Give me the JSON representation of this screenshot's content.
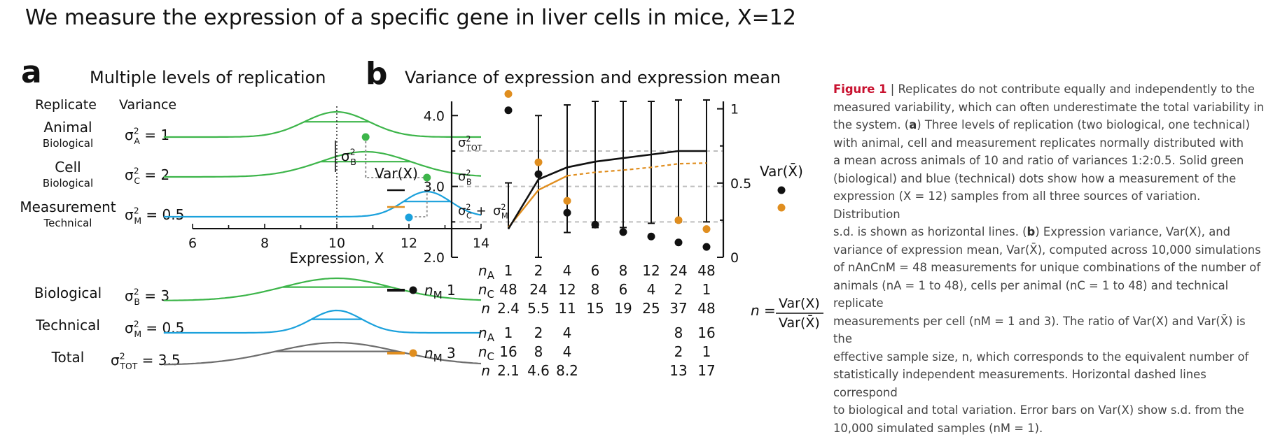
{
  "slide_title": "We measure the expression of a specific gene in liver cells in mice, X=12",
  "panel_a": {
    "letter": "a",
    "title": "Multiple levels of replication",
    "col_replicate": "Replicate",
    "col_variance": "Variance",
    "rows": [
      {
        "name": "Animal",
        "kind": "Biological",
        "sym": "σ",
        "sub": "A",
        "val": " = 1",
        "color": "#3db54a"
      },
      {
        "name": "Cell",
        "kind": "Biological",
        "sym": "σ",
        "sub": "C",
        "val": " = 2",
        "color": "#3db54a"
      },
      {
        "name": "Measurement",
        "kind": "Technical",
        "sym": "σ",
        "sub": "M",
        "val": " = 0.5",
        "color": "#1ba1dc"
      }
    ],
    "bracket_sym": "σ",
    "bracket_sub": "B",
    "xaxis_ticks": [
      "6",
      "8",
      "10",
      "12",
      "14"
    ],
    "xaxis_label": "Expression, X",
    "totals": [
      {
        "name": "Biological",
        "sym": "σ",
        "sub": "B",
        "val": " = 3",
        "color": "#3db54a"
      },
      {
        "name": "Technical",
        "sym": "σ",
        "sub": "M",
        "val": " = 0.5",
        "color": "#1ba1dc"
      },
      {
        "name": "Total",
        "sym": "σ",
        "sub": "TOT",
        "val": " = 3.5",
        "color": "#6d6d6d"
      }
    ]
  },
  "panel_b": {
    "letter": "b",
    "title": "Variance of expression and expression mean",
    "left_axis_label": "Var(X)",
    "right_axis_label": "Var(X̄)",
    "left_ticks": [
      "4.0",
      "3.0",
      "2.0"
    ],
    "right_ticks": [
      "1",
      "0.5",
      "0"
    ],
    "ref_tot_sub": "TOT",
    "ref_b_sub": "B",
    "ref_cm_sub1": "C",
    "ref_cm_sub2": "M",
    "colors": {
      "nm1": "#111111",
      "nm3": "#e08e1f"
    },
    "nm1_label": "n",
    "nm1_sub": "M",
    "nm1_val": " 1",
    "nm3_val": " 3",
    "table_rows_nm1": {
      "nA": [
        "1",
        "2",
        "4",
        "6",
        "8",
        "12",
        "24",
        "48"
      ],
      "nC": [
        "48",
        "24",
        "12",
        "8",
        "6",
        "4",
        "2",
        "1"
      ],
      "n": [
        "2.4",
        "5.5",
        "11",
        "15",
        "19",
        "25",
        "37",
        "48"
      ]
    },
    "table_rows_nm3": {
      "nA": [
        "1",
        "2",
        "4",
        "",
        "",
        "",
        "8",
        "16"
      ],
      "nC": [
        "16",
        "8",
        "4",
        "",
        "",
        "",
        "2",
        "1"
      ],
      "n": [
        "2.1",
        "4.6",
        "8.2",
        "",
        "",
        "",
        "13",
        "17"
      ]
    },
    "formula_lhs": "n =",
    "formula_num": "Var(X)",
    "formula_den": "Var(X̄)"
  },
  "chart_data": {
    "type": "line",
    "x_positions": [
      "1",
      "2",
      "3",
      "4",
      "5",
      "6",
      "7",
      "8"
    ],
    "ylim_left": [
      2.0,
      4.2
    ],
    "ylim_right": [
      0,
      1.05
    ],
    "reference_lines": {
      "sigma_TOT": 3.5,
      "sigma_B": 3.0,
      "sigma_C_plus_M": 2.5
    },
    "series": [
      {
        "name": "Var(X), nM=1",
        "axis": "left",
        "values": [
          2.4,
          3.1,
          3.27,
          3.35,
          3.4,
          3.45,
          3.5,
          3.5
        ],
        "error_lower": [
          3.05,
          2.0,
          2.35,
          2.42,
          2.42,
          2.48,
          2.5,
          2.5
        ],
        "error_upper": [
          3.05,
          4.0,
          4.15,
          4.2,
          4.2,
          4.2,
          4.22,
          4.22
        ]
      },
      {
        "name": "Var(X), nM=3",
        "axis": "left",
        "values": [
          2.42,
          2.95,
          3.15,
          3.2,
          3.23,
          3.27,
          3.32,
          3.33
        ]
      },
      {
        "name": "Var(X̄), nM=1",
        "axis": "right",
        "values": [
          0.99,
          0.56,
          0.3,
          0.22,
          0.17,
          0.14,
          0.1,
          0.07
        ]
      },
      {
        "name": "Var(X̄), nM=3",
        "axis": "right",
        "values": [
          1.1,
          0.64,
          0.38,
          null,
          null,
          null,
          0.25,
          0.19
        ]
      }
    ]
  },
  "caption": {
    "label": "Figure 1",
    "lines": [
      " | Replicates do not contribute equally and independently to the",
      "measured variability, which can often underestimate the total variability in",
      "the system. (",
      "with animal, cell and measurement replicates normally distributed with",
      "a mean across animals of 10 and ratio of variances 1:2:0.5. Solid green",
      "(biological) and blue (technical) dots show how a measurement of the",
      "expression (X = 12) samples from all three sources of variation. Distribution",
      "s.d. is shown as horizontal lines. (",
      "variance of expression mean, Var(X̄), computed across 10,000 simulations",
      "of nAnCnM = 48 measurements for unique combinations of the number of",
      "animals (nA = 1 to 48), cells per animal (nC = 1 to 48) and technical replicate",
      "measurements per cell (nM = 1 and 3). The ratio of Var(X) and Var(X̄) is the",
      "effective sample size, n, which corresponds to the equivalent number of",
      "statistically independent measurements. Horizontal dashed lines correspond",
      "to biological and total variation. Error bars on Var(X) show s.d. from the",
      "10,000 simulated samples (nM = 1)."
    ],
    "a_letter": "a",
    "a_rest": ") Three levels of replication (two biological, one technical)",
    "b_letter": "b",
    "b_rest": ") Expression variance, Var(X), and"
  }
}
